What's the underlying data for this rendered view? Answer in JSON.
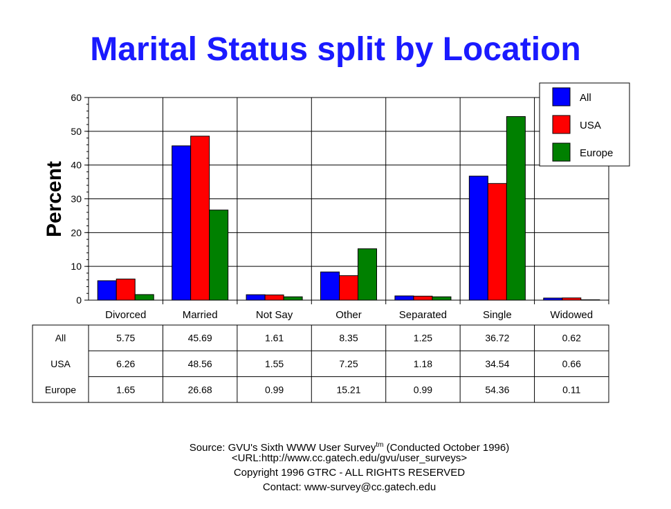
{
  "title": "Marital Status split by Location",
  "colors": {
    "title": "#1a1aff",
    "All": "#0000ff",
    "USA": "#ff0000",
    "Europe": "#008000"
  },
  "chart_data": {
    "type": "bar",
    "ylabel": "Percent",
    "xlabel": "",
    "ylim": [
      0,
      60
    ],
    "yticks": [
      0,
      10,
      20,
      30,
      40,
      50,
      60
    ],
    "grid": true,
    "legend": "top-right",
    "categories": [
      "Divorced",
      "Married",
      "Not Say",
      "Other",
      "Separated",
      "Single",
      "Widowed"
    ],
    "series": [
      {
        "name": "All",
        "color": "#0000ff",
        "values": [
          5.75,
          45.69,
          1.61,
          8.35,
          1.25,
          36.72,
          0.62
        ]
      },
      {
        "name": "USA",
        "color": "#ff0000",
        "values": [
          6.26,
          48.56,
          1.55,
          7.25,
          1.18,
          34.54,
          0.66
        ]
      },
      {
        "name": "Europe",
        "color": "#008000",
        "values": [
          1.65,
          26.68,
          0.99,
          15.21,
          0.99,
          54.36,
          0.11
        ]
      }
    ],
    "table": {
      "rows": [
        {
          "label": "All",
          "values": [
            "5.75",
            "45.69",
            "1.61",
            "8.35",
            "1.25",
            "36.72",
            "0.62"
          ]
        },
        {
          "label": "USA",
          "values": [
            "6.26",
            "48.56",
            "1.55",
            "7.25",
            "1.18",
            "34.54",
            "0.66"
          ]
        },
        {
          "label": "Europe",
          "values": [
            "1.65",
            "26.68",
            "0.99",
            "15.21",
            "0.99",
            "54.36",
            "0.11"
          ]
        }
      ]
    }
  },
  "footer": {
    "source_prefix": "Source: GVU's Sixth WWW User Survey",
    "tm": "tm",
    "source_suffix": "  (Conducted October 1996)",
    "url": "<URL:http://www.cc.gatech.edu/gvu/user_surveys>",
    "copyright": "Copyright 1996 GTRC -  ALL RIGHTS RESERVED",
    "contact": "Contact: www-survey@cc.gatech.edu"
  }
}
